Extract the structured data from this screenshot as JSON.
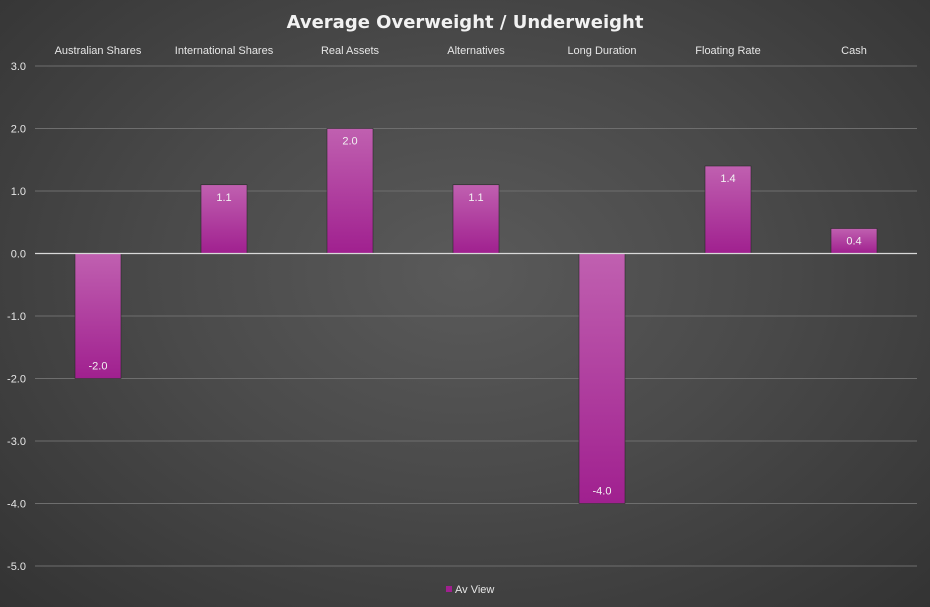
{
  "chart_data": {
    "type": "bar",
    "title": "Average Overweight / Underweight",
    "categories": [
      "Australian Shares",
      "International Shares",
      "Real Assets",
      "Alternatives",
      "Long Duration",
      "Floating Rate",
      "Cash"
    ],
    "series": [
      {
        "name": "Av View",
        "values": [
          -2.0,
          1.1,
          2.0,
          1.1,
          -4.0,
          1.4,
          0.4
        ],
        "data_labels": [
          "-2.0",
          "1.1",
          "2.0",
          "1.1",
          "-4.0",
          "1.4",
          "0.4"
        ]
      }
    ],
    "ylim": [
      -5.0,
      3.0
    ],
    "yticks": [
      3.0,
      2.0,
      1.0,
      0.0,
      -1.0,
      -2.0,
      -3.0,
      -4.0,
      -5.0
    ],
    "ytick_labels": [
      "3.0",
      "2.0",
      "1.0",
      "0.0",
      "-1.0",
      "-2.0",
      "-3.0",
      "-4.0",
      "-5.0"
    ],
    "xlabel": "",
    "ylabel": "",
    "grid": true,
    "legend_position": "bottom",
    "category_label_position": "top",
    "colors": {
      "bar": "#a0208f",
      "bar_light": "#c060b0",
      "background": "#4a4a4a",
      "gridline": "#6e6e6e",
      "zero_line": "#d9d9d9",
      "text": "#e6e6e6"
    }
  }
}
